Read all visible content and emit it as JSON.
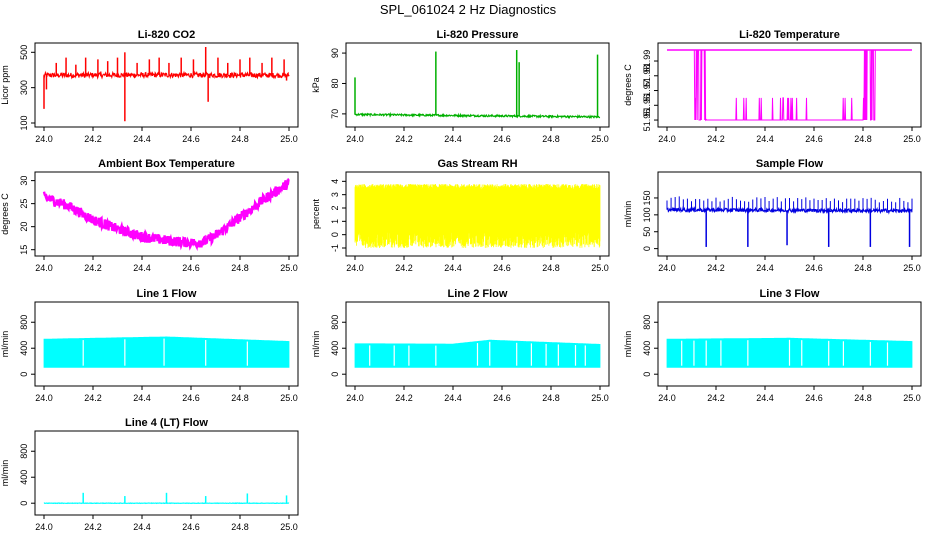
{
  "page_title": "SPL_061024  2 Hz Diagnostics",
  "chart_data": [
    {
      "type": "line",
      "title": "Li-820 CO2",
      "xlabel": "",
      "ylabel": "Licor ppm",
      "xlim": [
        24.0,
        25.0
      ],
      "ylim": [
        100,
        530
      ],
      "x_ticks": [
        "24.0",
        "24.2",
        "24.4",
        "24.6",
        "24.8",
        "25.0"
      ],
      "y_ticks": [
        "100",
        "300",
        "500"
      ],
      "color": "#ff0000",
      "series": [
        {
          "baseline": [
            [
              24.0,
              370
            ],
            [
              24.5,
              372
            ],
            [
              25.0,
              370
            ]
          ],
          "noise": 14,
          "spikes": [
            [
              24.0,
              180
            ],
            [
              24.01,
              290
            ],
            [
              24.05,
              440
            ],
            [
              24.09,
              470
            ],
            [
              24.13,
              430
            ],
            [
              24.17,
              470
            ],
            [
              24.22,
              460
            ],
            [
              24.26,
              450
            ],
            [
              24.3,
              470
            ],
            [
              24.33,
              110
            ],
            [
              24.33,
              500
            ],
            [
              24.38,
              440
            ],
            [
              24.43,
              460
            ],
            [
              24.47,
              470
            ],
            [
              24.51,
              440
            ],
            [
              24.56,
              470
            ],
            [
              24.61,
              460
            ],
            [
              24.66,
              530
            ],
            [
              24.67,
              220
            ],
            [
              24.71,
              470
            ],
            [
              24.75,
              440
            ],
            [
              24.8,
              460
            ],
            [
              24.84,
              470
            ],
            [
              24.89,
              440
            ],
            [
              24.93,
              470
            ],
            [
              24.98,
              460
            ],
            [
              24.99,
              340
            ]
          ]
        }
      ]
    },
    {
      "type": "line",
      "title": "Li-820 Pressure",
      "xlabel": "",
      "ylabel": "kPa",
      "xlim": [
        24.0,
        25.0
      ],
      "ylim": [
        67,
        92
      ],
      "x_ticks": [
        "24.0",
        "24.2",
        "24.4",
        "24.6",
        "24.8",
        "25.0"
      ],
      "y_ticks": [
        "70",
        "80",
        "90"
      ],
      "color": "#00b000",
      "series": [
        {
          "baseline": [
            [
              24.0,
              69.8
            ],
            [
              25.0,
              69.0
            ]
          ],
          "noise": 0.3,
          "spikes": [
            [
              24.0,
              82
            ],
            [
              24.33,
              90.5
            ],
            [
              24.66,
              91
            ],
            [
              24.67,
              87
            ],
            [
              24.99,
              89.5
            ]
          ]
        }
      ]
    },
    {
      "type": "line",
      "title": "Li-820 Temperature",
      "xlabel": "",
      "ylabel": "degrees C",
      "xlim": [
        24.0,
        25.0
      ],
      "ylim": [
        51.948,
        51.9995
      ],
      "x_ticks": [
        "24.0",
        "24.2",
        "24.4",
        "24.6",
        "24.8",
        "25.0"
      ],
      "y_ticks": [
        "51.95",
        "51.96",
        "51.97",
        "51.98",
        "51.99"
      ],
      "color": "#ff00ff",
      "series": [
        {
          "levels": [
            [
              24.0,
              51.9975
            ],
            [
              24.11,
              51.9975
            ],
            [
              24.13,
              51.985
            ],
            [
              24.16,
              51.95
            ],
            [
              24.4,
              51.95
            ],
            [
              24.8,
              51.95
            ],
            [
              24.82,
              51.985
            ],
            [
              24.85,
              51.9975
            ],
            [
              25.0,
              51.9975
            ]
          ]
        }
      ]
    },
    {
      "type": "line",
      "title": "Ambient Box Temperature",
      "xlabel": "",
      "ylabel": "degrees C",
      "xlim": [
        24.0,
        25.0
      ],
      "ylim": [
        14.5,
        31
      ],
      "x_ticks": [
        "24.0",
        "24.2",
        "24.4",
        "24.6",
        "24.8",
        "25.0"
      ],
      "y_ticks": [
        "15",
        "20",
        "25",
        "30"
      ],
      "color": "#ff00ff",
      "series": [
        {
          "baseline": [
            [
              24.0,
              26.5
            ],
            [
              24.1,
              24.5
            ],
            [
              24.2,
              21.5
            ],
            [
              24.3,
              19.5
            ],
            [
              24.4,
              17.8
            ],
            [
              24.5,
              17.0
            ],
            [
              24.6,
              16.5
            ],
            [
              24.65,
              16.6
            ],
            [
              24.7,
              18.0
            ],
            [
              24.8,
              22.0
            ],
            [
              24.9,
              26.0
            ],
            [
              25.0,
              29.5
            ]
          ],
          "noise": 1.1
        }
      ]
    },
    {
      "type": "line",
      "title": "Gas Stream RH",
      "xlabel": "",
      "ylabel": "percent",
      "xlim": [
        24.0,
        25.0
      ],
      "ylim": [
        -1.3,
        4.4
      ],
      "x_ticks": [
        "24.0",
        "24.2",
        "24.4",
        "24.6",
        "24.8",
        "25.0"
      ],
      "y_ticks": [
        "-1",
        "0",
        "1",
        "2",
        "3",
        "4"
      ],
      "color": "#ffff00",
      "series": [
        {
          "band": [
            [
              24.0,
              0.3,
              3.4
            ],
            [
              25.0,
              0.3,
              3.4
            ]
          ],
          "extremes": [
            -1.0,
            3.9
          ]
        }
      ]
    },
    {
      "type": "line",
      "title": "Sample Flow",
      "xlabel": "",
      "ylabel": "ml/min",
      "xlim": [
        24.0,
        25.0
      ],
      "ylim": [
        -10,
        215
      ],
      "x_ticks": [
        "24.0",
        "24.2",
        "24.4",
        "24.6",
        "24.8",
        "25.0"
      ],
      "y_ticks": [
        "0",
        "50",
        "100",
        "150"
      ],
      "color": "#0000e0",
      "series": [
        {
          "baseline": [
            [
              24.0,
              115
            ],
            [
              25.0,
              112
            ]
          ],
          "noise": 5,
          "spikes": [
            [
              24.16,
              5
            ],
            [
              24.33,
              5
            ],
            [
              24.49,
              10
            ],
            [
              24.66,
              5
            ],
            [
              24.83,
              5
            ],
            [
              24.99,
              5
            ]
          ],
          "upticks": 40
        }
      ]
    },
    {
      "type": "area",
      "title": "Line 1 Flow",
      "xlabel": "",
      "ylabel": "ml/min",
      "xlim": [
        24.0,
        25.0
      ],
      "ylim": [
        -120,
        1050
      ],
      "x_ticks": [
        "24.0",
        "24.2",
        "24.4",
        "24.6",
        "24.8",
        "25.0"
      ],
      "y_ticks": [
        "0",
        "400",
        "800"
      ],
      "color": "#00ffff",
      "series": [
        {
          "band": [
            [
              24.0,
              100,
              545
            ],
            [
              24.5,
              100,
              580
            ],
            [
              25.0,
              100,
              510
            ]
          ],
          "gaps": [
            24.16,
            24.33,
            24.49,
            24.66,
            24.83
          ]
        }
      ]
    },
    {
      "type": "area",
      "title": "Line 2 Flow",
      "xlabel": "",
      "ylabel": "ml/min",
      "xlim": [
        24.0,
        25.0
      ],
      "ylim": [
        -120,
        1050
      ],
      "x_ticks": [
        "24.0",
        "24.2",
        "24.4",
        "24.6",
        "24.8",
        "25.0"
      ],
      "y_ticks": [
        "0",
        "400",
        "800"
      ],
      "color": "#00ffff",
      "series": [
        {
          "band": [
            [
              24.0,
              100,
              475
            ],
            [
              24.4,
              100,
              470
            ],
            [
              24.55,
              100,
              530
            ],
            [
              25.0,
              100,
              465
            ]
          ],
          "gaps": [
            24.06,
            24.16,
            24.22,
            24.33,
            24.5,
            24.55,
            24.66,
            24.72,
            24.78,
            24.83,
            24.9,
            24.94
          ]
        }
      ]
    },
    {
      "type": "area",
      "title": "Line 3 Flow",
      "xlabel": "",
      "ylabel": "ml/min",
      "xlim": [
        24.0,
        25.0
      ],
      "ylim": [
        -120,
        1050
      ],
      "x_ticks": [
        "24.0",
        "24.2",
        "24.4",
        "24.6",
        "24.8",
        "25.0"
      ],
      "y_ticks": [
        "0",
        "400",
        "800"
      ],
      "color": "#00ffff",
      "series": [
        {
          "band": [
            [
              24.0,
              100,
              545
            ],
            [
              24.5,
              100,
              560
            ],
            [
              25.0,
              100,
              510
            ]
          ],
          "gaps": [
            24.06,
            24.11,
            24.16,
            24.22,
            24.33,
            24.5,
            24.55,
            24.66,
            24.72,
            24.83,
            24.9
          ]
        }
      ]
    },
    {
      "type": "line",
      "title": "Line 4 (LT) Flow",
      "xlabel": "",
      "ylabel": "ml/min",
      "xlim": [
        24.0,
        25.0
      ],
      "ylim": [
        -120,
        1050
      ],
      "x_ticks": [
        "24.0",
        "24.2",
        "24.4",
        "24.6",
        "24.8",
        "25.0"
      ],
      "y_ticks": [
        "0",
        "400",
        "800"
      ],
      "color": "#00ffff",
      "series": [
        {
          "baseline": [
            [
              24.0,
              0
            ],
            [
              25.0,
              0
            ]
          ],
          "noise": 3,
          "spikes": [
            [
              24.16,
              160
            ],
            [
              24.33,
              110
            ],
            [
              24.5,
              160
            ],
            [
              24.66,
              110
            ],
            [
              24.83,
              150
            ],
            [
              24.99,
              120
            ]
          ]
        }
      ]
    }
  ]
}
